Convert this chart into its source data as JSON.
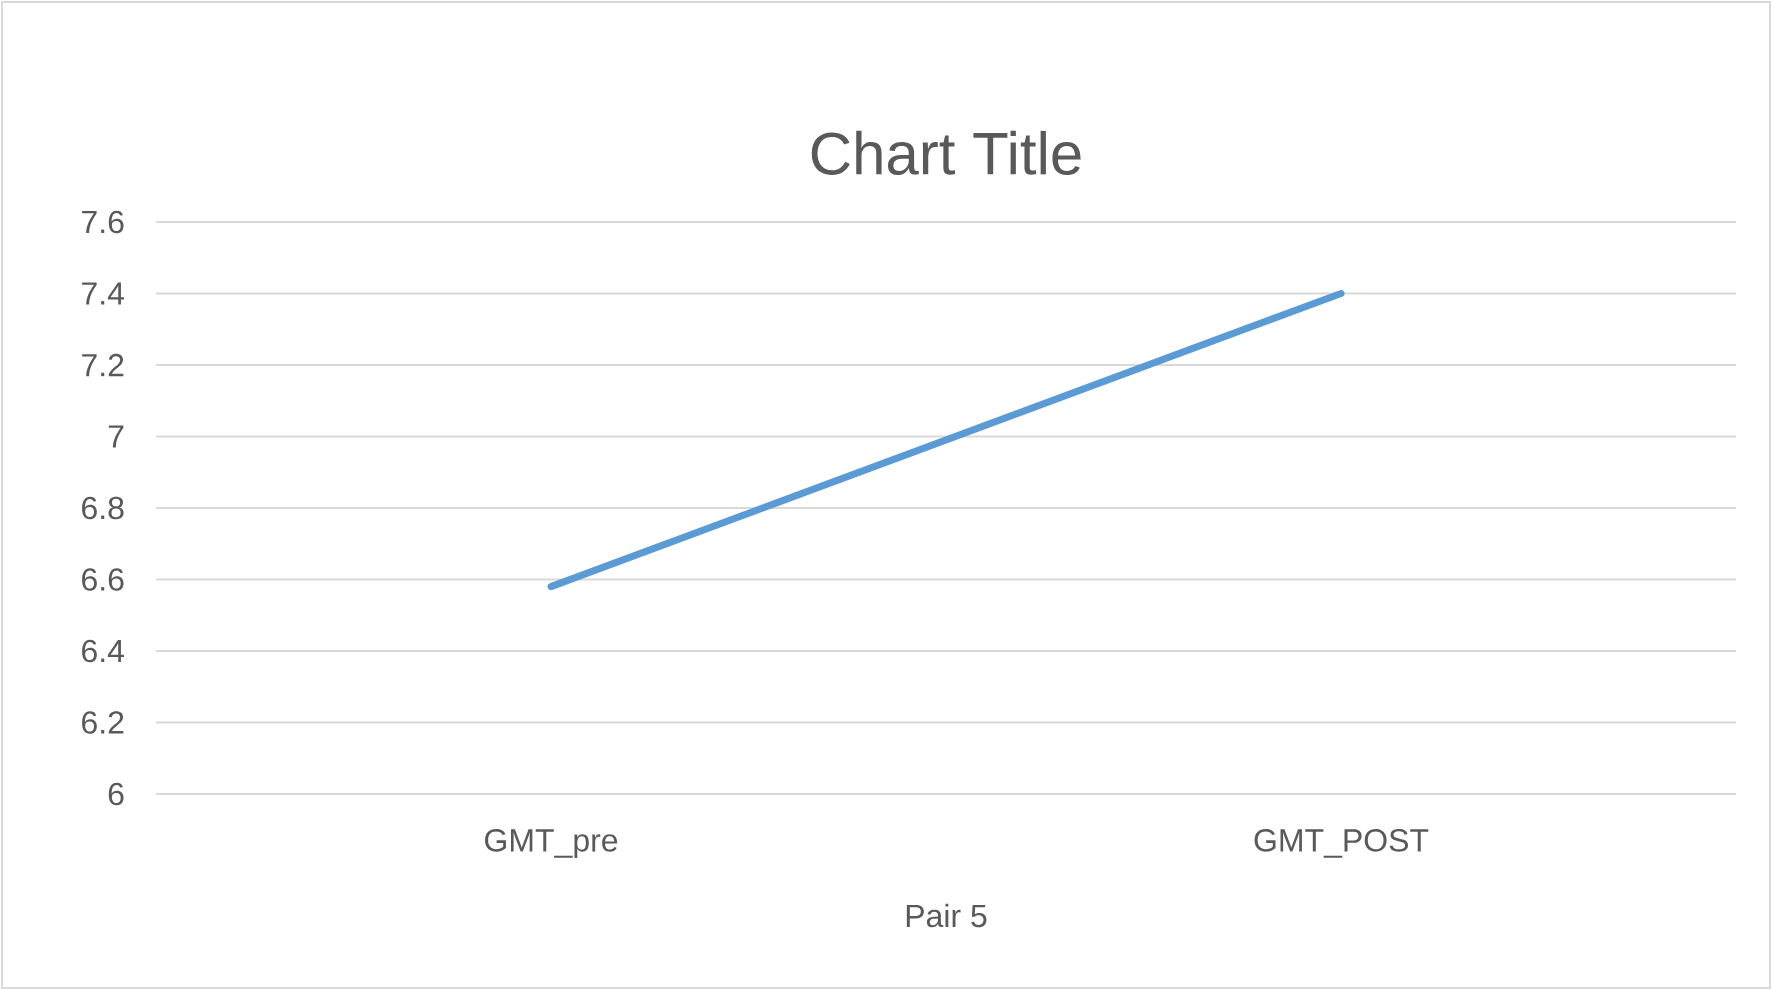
{
  "chart_data": {
    "type": "line",
    "title": "Chart Title",
    "xlabel": "Pair 5",
    "categories": [
      "GMT_pre",
      "GMT_POST"
    ],
    "series": [
      {
        "color": "#5b9bd5",
        "values": [
          6.58,
          7.4
        ]
      }
    ],
    "ylim": [
      6,
      7.6
    ],
    "yticks": [
      6,
      6.2,
      6.4,
      6.6,
      6.8,
      7,
      7.2,
      7.4,
      7.6
    ],
    "grid": "y",
    "marker": "none",
    "line_style": "solid"
  }
}
